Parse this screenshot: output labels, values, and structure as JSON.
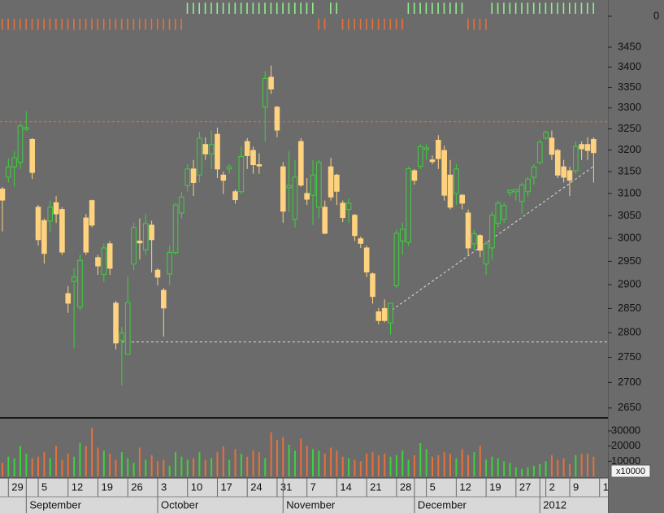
{
  "chart_data": {
    "type": "candlestick",
    "log_y": true,
    "up_color": "#3cd23c",
    "down_color": "#ffd27f",
    "xlim": [
      -0.4,
      101.4
    ],
    "ylim": [
      2634,
      3483
    ],
    "yticks": [
      2650,
      2700,
      2750,
      2800,
      2850,
      2900,
      2950,
      3000,
      3050,
      3100,
      3150,
      3200,
      3250,
      3300,
      3350,
      3400,
      3450
    ],
    "open": [
      3110,
      3137,
      3161,
      3171,
      3249,
      3225,
      3069,
      3039,
      3038,
      3079,
      3064,
      2881,
      2907,
      2853,
      3045,
      3084,
      2958,
      2922,
      2988,
      2861,
      2784,
      2756,
      2944,
      2994,
      2975,
      3029,
      2931,
      2888,
      2923,
      2969,
      3056,
      3118,
      3156,
      3142,
      3213,
      3191,
      3237,
      3142,
      3156,
      3104,
      3104,
      3220,
      3199,
      3166,
      3302,
      3375,
      3302,
      3161,
      3113,
      3042,
      3220,
      3100,
      3096,
      3069,
      3069,
      3161,
      3142,
      3078,
      3064,
      3051,
      2999,
      2979,
      2923,
      2843,
      2850,
      2820,
      2898,
      2994,
      2991,
      3152,
      3162,
      3201,
      3177,
      3223,
      3199,
      3142,
      3100,
      3096,
      3056,
      2988,
      3006,
      2944,
      2979,
      3033,
      3042,
      3102,
      3104,
      3082,
      3104,
      3137,
      3171,
      3228,
      3228,
      3199,
      3161,
      3152,
      3152,
      3213,
      3213,
      3225
    ],
    "high": [
      3115,
      3180,
      3197,
      3263,
      3292,
      3228,
      3074,
      3044,
      3084,
      3094,
      3069,
      2897,
      2935,
      2964,
      3054,
      3086,
      2964,
      2989,
      2994,
      2866,
      2812,
      2917,
      3034,
      3044,
      3054,
      3039,
      2935,
      2893,
      2984,
      3079,
      3104,
      3167,
      3177,
      3243,
      3230,
      3246,
      3253,
      3150,
      3167,
      3109,
      3208,
      3228,
      3208,
      3192,
      3390,
      3404,
      3305,
      3172,
      3197,
      3177,
      3228,
      3135,
      3177,
      3177,
      3084,
      3182,
      3145,
      3084,
      3089,
      3054,
      3004,
      2984,
      2926,
      2851,
      2869,
      2861,
      3019,
      3034,
      3161,
      3156,
      3214,
      3214,
      3187,
      3235,
      3210,
      3177,
      3167,
      3099,
      3064,
      3019,
      3009,
      2994,
      3059,
      3084,
      3079,
      3109,
      3109,
      3125,
      3137,
      3167,
      3225,
      3246,
      3246,
      3203,
      3177,
      3161,
      3220,
      3220,
      3230,
      3230
    ],
    "low": [
      3015,
      3125,
      3115,
      3156,
      3245,
      3133,
      2984,
      2945,
      3014,
      3034,
      2964,
      2841,
      2768,
      2846,
      2964,
      3024,
      2921,
      2906,
      2921,
      2766,
      2694,
      2757,
      2931,
      2954,
      2964,
      2926,
      2898,
      2792,
      2898,
      2964,
      3044,
      3104,
      3094,
      3125,
      3177,
      3156,
      3135,
      3099,
      3145,
      3077,
      3099,
      3156,
      3145,
      3145,
      3220,
      3334,
      3230,
      3034,
      3059,
      3024,
      3115,
      3074,
      3029,
      3044,
      3009,
      3084,
      3074,
      3036,
      3034,
      2994,
      2979,
      2916,
      2860,
      2817,
      2821,
      2796,
      2893,
      2964,
      2984,
      3120,
      3156,
      3177,
      3167,
      3156,
      3084,
      3064,
      3074,
      3064,
      2964,
      2974,
      2959,
      2921,
      2954,
      3024,
      3034,
      3094,
      3084,
      3054,
      3094,
      3120,
      3167,
      3225,
      3177,
      3135,
      3125,
      3094,
      3145,
      3177,
      3177,
      3125
    ],
    "close": [
      3085,
      3161,
      3182,
      3257,
      3253,
      3148,
      2997,
      2967,
      3069,
      3054,
      2970,
      2861,
      2916,
      2952,
      2970,
      3029,
      2940,
      2979,
      2935,
      2779,
      2799,
      2862,
      3024,
      2990,
      3033,
      2997,
      2916,
      2851,
      2969,
      3074,
      3092,
      3156,
      3125,
      3228,
      3191,
      3213,
      3156,
      3130,
      3161,
      3086,
      3185,
      3187,
      3166,
      3163,
      3372,
      3346,
      3247,
      3060,
      3118,
      3137,
      3119,
      3087,
      3142,
      3171,
      3011,
      3092,
      3105,
      3046,
      3078,
      3006,
      2989,
      2927,
      2875,
      2825,
      2825,
      2861,
      3011,
      3020,
      3157,
      3130,
      3208,
      3205,
      3173,
      3180,
      3096,
      3069,
      3156,
      3078,
      2979,
      3010,
      2974,
      2988,
      3051,
      3078,
      3073,
      3107,
      3109,
      3119,
      3133,
      3161,
      3218,
      3242,
      3190,
      3142,
      3137,
      3130,
      3208,
      3203,
      3199,
      3194
    ],
    "xticks": [
      {
        "value": 1,
        "label": "29"
      },
      {
        "value": 6,
        "label": "5"
      },
      {
        "value": 11,
        "label": "12"
      },
      {
        "value": 16,
        "label": "19"
      },
      {
        "value": 21,
        "label": "26"
      },
      {
        "value": 26,
        "label": "3"
      },
      {
        "value": 31,
        "label": "10"
      },
      {
        "value": 36,
        "label": "17"
      },
      {
        "value": 41,
        "label": "24"
      },
      {
        "value": 46,
        "label": "31"
      },
      {
        "value": 51,
        "label": "7"
      },
      {
        "value": 56,
        "label": "14"
      },
      {
        "value": 61,
        "label": "21"
      },
      {
        "value": 66,
        "label": "28"
      },
      {
        "value": 71,
        "label": "5"
      },
      {
        "value": 76,
        "label": "12"
      },
      {
        "value": 81,
        "label": "19"
      },
      {
        "value": 86,
        "label": "27"
      },
      {
        "value": 91,
        "label": "2"
      },
      {
        "value": 95,
        "label": "9"
      },
      {
        "value": 100,
        "label": "1"
      }
    ],
    "months": [
      {
        "value": 4,
        "label": "September"
      },
      {
        "value": 26,
        "label": "October"
      },
      {
        "value": 47,
        "label": "November"
      },
      {
        "value": 69,
        "label": "December"
      },
      {
        "value": 90,
        "label": "2012"
      }
    ],
    "hlines": [
      {
        "value": 3267,
        "color": "#e8703a",
        "start": -0.4
      },
      {
        "value": 2781,
        "color": "#dddddd",
        "start": 20
      }
    ],
    "trendline": {
      "x": [
        64.6,
        99
      ],
      "values": [
        2841,
        3162
      ],
      "color": "#dddddd"
    },
    "volume": {
      "values": [
        9000,
        13000,
        12000,
        20000,
        15000,
        12000,
        13000,
        16000,
        12000,
        20000,
        11000,
        15000,
        13000,
        22000,
        20000,
        32000,
        19000,
        17000,
        15000,
        11000,
        16000,
        12000,
        9000,
        19000,
        11000,
        14000,
        10000,
        11000,
        7000,
        16000,
        13000,
        11000,
        12000,
        16000,
        11000,
        12000,
        16000,
        20000,
        11000,
        18000,
        15000,
        13000,
        17000,
        16000,
        12000,
        29000,
        24000,
        26000,
        21000,
        17000,
        25000,
        20000,
        18000,
        17000,
        15000,
        19000,
        17000,
        13000,
        12000,
        11000,
        10000,
        15000,
        16000,
        14000,
        15000,
        13000,
        14000,
        17000,
        11000,
        14000,
        22000,
        18000,
        13000,
        14000,
        16000,
        15000,
        12000,
        18000,
        14000,
        16000,
        20000,
        11000,
        13000,
        12000,
        10000,
        9000,
        6000,
        5000,
        6000,
        7000,
        8000,
        10000,
        14000,
        11000,
        12000,
        8000,
        14000,
        15000,
        15000,
        13000
      ],
      "ylim": [
        0,
        37500
      ],
      "yticks": [
        10000,
        20000,
        30000
      ],
      "unit_label": "x10000",
      "up_color": "#3cd23c",
      "down_color": "#e8703a"
    },
    "indicator": {
      "values": [
        -1,
        -1,
        -1,
        -1,
        -1,
        -1,
        -1,
        -1,
        -1,
        -1,
        -1,
        -1,
        -1,
        -1,
        -1,
        -1,
        -1,
        -1,
        -1,
        -1,
        -1,
        -1,
        -1,
        -1,
        -1,
        -1,
        -1,
        -1,
        -1,
        -1,
        -1,
        1,
        1,
        1,
        1,
        1,
        1,
        1,
        1,
        1,
        1,
        1,
        1,
        1,
        1,
        1,
        1,
        1,
        1,
        1,
        1,
        1,
        1,
        -1,
        -1,
        1,
        1,
        -1,
        -1,
        -1,
        -1,
        -1,
        -1,
        -1,
        -1,
        -1,
        -1,
        -1,
        1,
        1,
        1,
        1,
        1,
        1,
        1,
        1,
        1,
        1,
        -1,
        -1,
        -1,
        -1,
        1,
        1,
        1,
        1,
        1,
        1,
        1,
        1,
        1,
        1,
        1,
        1,
        1,
        1,
        1,
        1,
        1,
        1
      ],
      "ylim": [
        -1.2,
        1.2
      ],
      "yticks": [
        0
      ],
      "up_color": "#8ef08e",
      "down_color": "#e8703a"
    }
  }
}
